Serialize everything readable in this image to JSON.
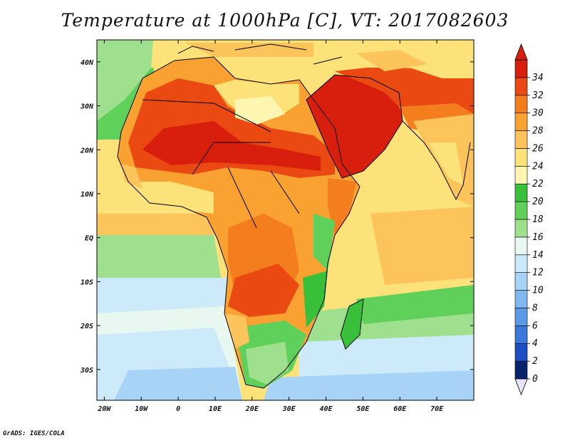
{
  "title": "Temperature at 1000hPa [C], VT: 2017082603",
  "credit": "GrADS: IGES/COLA",
  "map": {
    "lon_range": [
      -22,
      80
    ],
    "lat_range": [
      -37,
      45
    ],
    "lon_ticks": [
      {
        "value": -20,
        "label": "20W"
      },
      {
        "value": -10,
        "label": "10W"
      },
      {
        "value": 0,
        "label": "0"
      },
      {
        "value": 10,
        "label": "10E"
      },
      {
        "value": 20,
        "label": "20E"
      },
      {
        "value": 30,
        "label": "30E"
      },
      {
        "value": 40,
        "label": "40E"
      },
      {
        "value": 50,
        "label": "50E"
      },
      {
        "value": 60,
        "label": "60E"
      },
      {
        "value": 70,
        "label": "70E"
      }
    ],
    "lat_ticks": [
      {
        "value": 40,
        "label": "40N"
      },
      {
        "value": 30,
        "label": "30N"
      },
      {
        "value": 20,
        "label": "20N"
      },
      {
        "value": 10,
        "label": "10N"
      },
      {
        "value": 0,
        "label": "EQ"
      },
      {
        "value": -10,
        "label": "10S"
      },
      {
        "value": -20,
        "label": "20S"
      },
      {
        "value": -30,
        "label": "30S"
      }
    ]
  },
  "colorbar": {
    "levels": [
      0,
      2,
      4,
      6,
      8,
      10,
      12,
      14,
      16,
      18,
      20,
      22,
      24,
      26,
      28,
      30,
      32,
      34
    ],
    "colors": [
      "#08246e",
      "#1d4fc4",
      "#3a78dc",
      "#5a9be8",
      "#7fb8ef",
      "#a7d3f6",
      "#cceafa",
      "#e8f8f0",
      "#9fe08e",
      "#5fd05a",
      "#38c03a",
      "#fdf5b0",
      "#fde27a",
      "#fcc45a",
      "#f9a232",
      "#f47d1e",
      "#ea4a12",
      "#d81e0c"
    ],
    "under_color": "#e8e4fb",
    "over_color": "#d81e0c"
  }
}
